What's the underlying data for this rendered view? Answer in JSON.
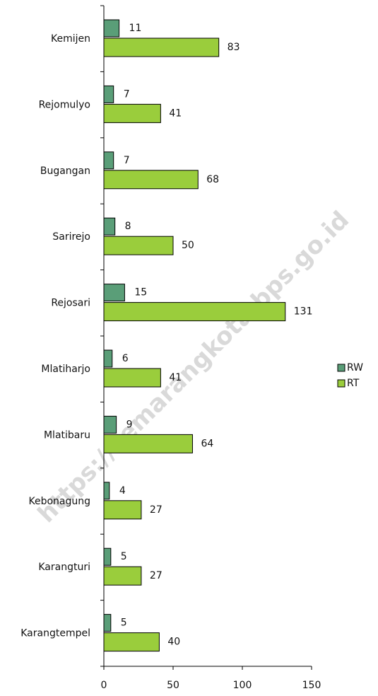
{
  "chart_data": {
    "type": "bar",
    "orientation": "horizontal",
    "categories": [
      "Kemijen",
      "Rejomulyo",
      "Bugangan",
      "Sarirejo",
      "Rejosari",
      "Mlatiharjo",
      "Mlatibaru",
      "Kebonagung",
      "Karangturi",
      "Karangtempel"
    ],
    "series": [
      {
        "name": "RW",
        "color": "#5a9e78",
        "values": [
          11,
          7,
          7,
          8,
          15,
          6,
          9,
          4,
          5,
          5
        ]
      },
      {
        "name": "RT",
        "color": "#9acd3c",
        "values": [
          83,
          41,
          68,
          50,
          131,
          41,
          64,
          27,
          27,
          40
        ]
      }
    ],
    "xlim": [
      0,
      150
    ],
    "xticks": [
      0,
      50,
      100,
      150
    ],
    "legend": "right",
    "watermark": "https://semarangkota.bps.go.id"
  }
}
